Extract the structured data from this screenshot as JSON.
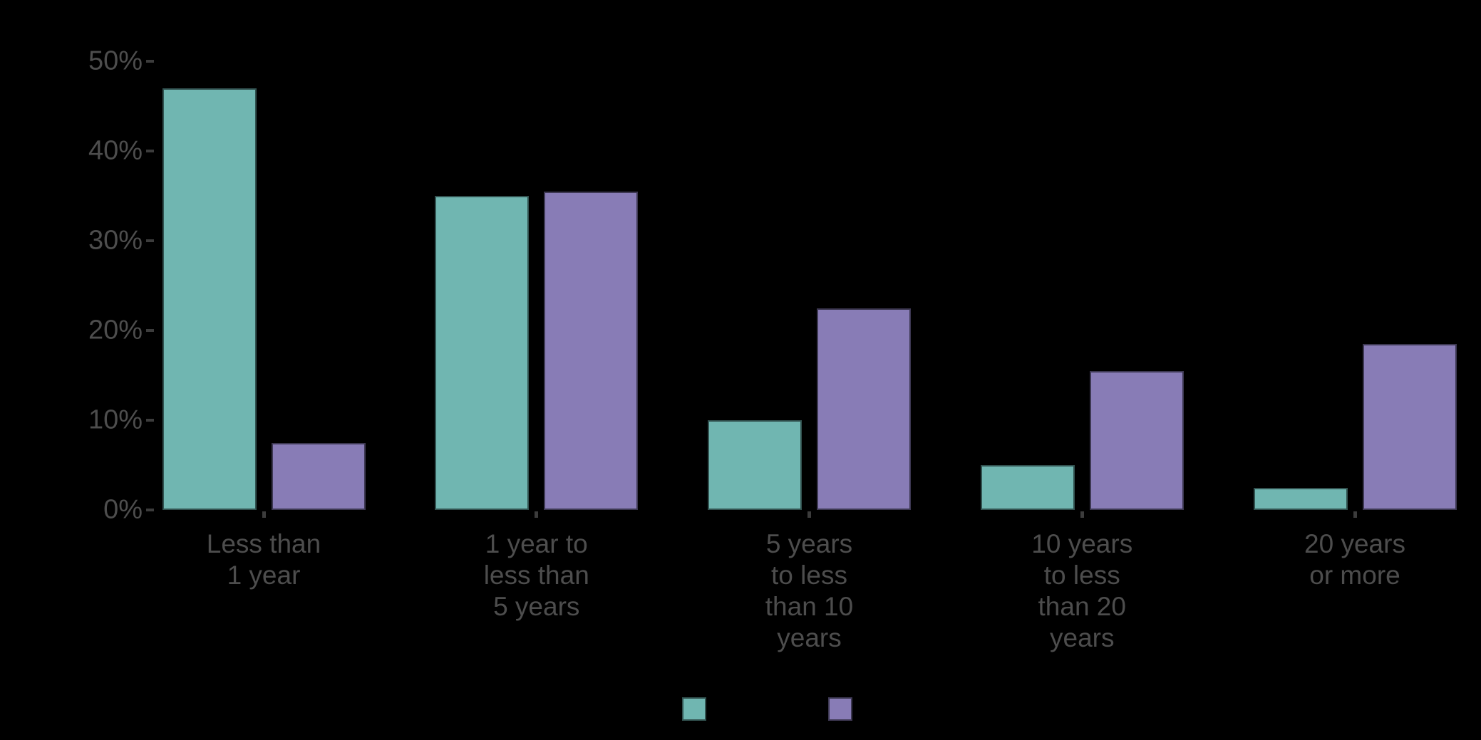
{
  "chart_data": {
    "type": "bar",
    "units": "percent",
    "categories": [
      {
        "label": "Less than 1 year",
        "lines": [
          "Less than",
          "1 year"
        ]
      },
      {
        "label": "1 year to less than 5 years",
        "lines": [
          "1 year to",
          "less than",
          "5 years"
        ]
      },
      {
        "label": "5 years to less than 10 years",
        "lines": [
          "5 years",
          "to less",
          "than 10",
          "years"
        ]
      },
      {
        "label": "10 years to less than 20 years",
        "lines": [
          "10 years",
          "to less",
          "than 20",
          "years"
        ]
      },
      {
        "label": "20 years or more",
        "lines": [
          "20 years",
          "or more"
        ]
      }
    ],
    "series": [
      {
        "key": "series-1",
        "color": "#70B6B1",
        "values": [
          47,
          35,
          10,
          5,
          2.5
        ]
      },
      {
        "key": "series-2",
        "color": "#887CB6",
        "values": [
          7.5,
          35.5,
          22.5,
          15.5,
          18.5
        ]
      }
    ],
    "y_axis": {
      "range": [
        0,
        50
      ],
      "ticks": [
        {
          "value": 0,
          "label": "0%"
        },
        {
          "value": 10,
          "label": "10%"
        },
        {
          "value": 20,
          "label": "20%"
        },
        {
          "value": 30,
          "label": "30%"
        },
        {
          "value": 40,
          "label": "40%"
        },
        {
          "value": 50,
          "label": "50%"
        }
      ]
    },
    "legend": {
      "position": "bottom",
      "swatches": [
        {
          "series": "series-1",
          "color": "#70B6B1"
        },
        {
          "series": "series-2",
          "color": "#887CB6"
        }
      ]
    },
    "grid": false
  },
  "appearance": {
    "background": "#000000",
    "axis_label_color": "#4D4D4D",
    "tick_mark_color": "#3C3C3C",
    "bar_edge_color": "rgba(0,0,0,0.55)"
  }
}
